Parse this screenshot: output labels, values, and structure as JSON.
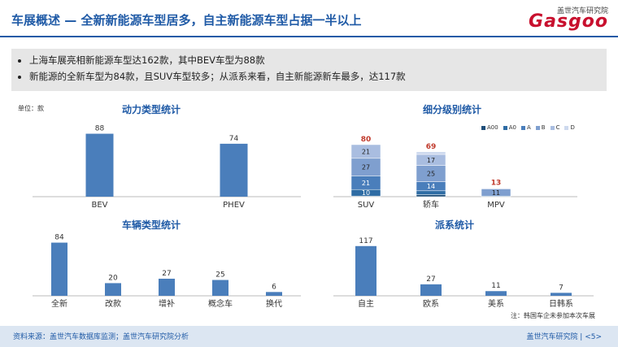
{
  "header": {
    "title": "车展概述 — 全新新能源车型居多，自主新能源车型占据一半以上",
    "logo_cn": "盖世汽车研究院",
    "logo_en": "Gasgoo"
  },
  "bullets": [
    "上海车展亮相新能源车型达162款，其中BEV车型为88款",
    "新能源的全新车型为84款，且SUV车型较多；从派系来看，自主新能源新车最多，达117款"
  ],
  "unit_label": "单位：款",
  "note": "注：韩国车企未参加本次车展",
  "footer": {
    "source": "资料来源：盖世汽车数据库监测；盖世汽车研究院分析",
    "org": "盖世汽车研究院 | <5>"
  },
  "chart_data": [
    {
      "type": "bar",
      "title": "动力类型统计",
      "categories": [
        "BEV",
        "PHEV"
      ],
      "values": [
        88,
        74
      ],
      "ylim": [
        0,
        100
      ],
      "color": "#4a7ebb"
    },
    {
      "type": "bar",
      "stacked": true,
      "title": "细分级别统计",
      "categories": [
        "SUV",
        "轿车",
        "MPV"
      ],
      "totals": [
        80,
        69,
        13
      ],
      "series": [
        {
          "name": "A00",
          "values": [
            1,
            3,
            0
          ],
          "color": "#1f4e79"
        },
        {
          "name": "A0",
          "values": [
            10,
            6,
            1
          ],
          "color": "#2e6ca4"
        },
        {
          "name": "A",
          "values": [
            21,
            14,
            0
          ],
          "color": "#4a7ebb"
        },
        {
          "name": "B",
          "values": [
            27,
            25,
            11
          ],
          "color": "#7f9fcf"
        },
        {
          "name": "C",
          "values": [
            21,
            17,
            0
          ],
          "color": "#a9bde0"
        },
        {
          "name": "D",
          "values": [
            0,
            4,
            1
          ],
          "color": "#cdd9ee"
        }
      ],
      "ylim": [
        0,
        90
      ],
      "total_color": "#c0392b"
    },
    {
      "type": "bar",
      "title": "车辆类型统计",
      "categories": [
        "全新",
        "改款",
        "增补",
        "概念车",
        "换代"
      ],
      "values": [
        84,
        20,
        27,
        25,
        6
      ],
      "ylim": [
        0,
        95
      ],
      "color": "#4a7ebb"
    },
    {
      "type": "bar",
      "title": "派系统计",
      "categories": [
        "自主",
        "欧系",
        "美系",
        "日韩系"
      ],
      "values": [
        117,
        27,
        11,
        7
      ],
      "ylim": [
        0,
        130
      ],
      "color": "#4a7ebb"
    }
  ]
}
